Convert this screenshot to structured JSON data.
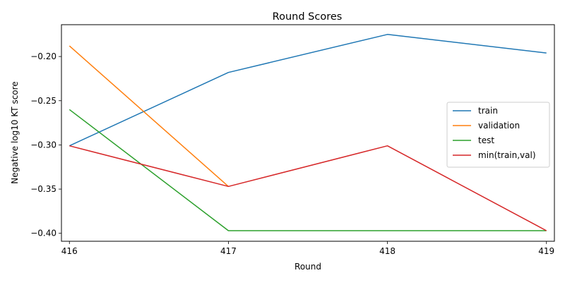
{
  "chart_data": {
    "type": "line",
    "title": "Round Scores",
    "xlabel": "Round",
    "ylabel": "Negative log10 KT score",
    "x": [
      416,
      417,
      418,
      419
    ],
    "xticks": [
      "416",
      "417",
      "418",
      "419"
    ],
    "yticks": [
      -0.2,
      -0.25,
      -0.3,
      -0.35,
      -0.4
    ],
    "ytick_labels": [
      "−0.20",
      "−0.25",
      "−0.30",
      "−0.35",
      "−0.40"
    ],
    "xlim": [
      415.95,
      419.05
    ],
    "ylim": [
      -0.409,
      -0.164
    ],
    "grid": false,
    "legend_position": "center-right",
    "series": [
      {
        "name": "train",
        "color": "#1f77b4",
        "values": [
          -0.301,
          -0.218,
          -0.175,
          -0.196
        ]
      },
      {
        "name": "validation",
        "color": "#ff7f0e",
        "values": [
          -0.188,
          -0.347,
          null,
          null
        ]
      },
      {
        "name": "test",
        "color": "#2ca02c",
        "values": [
          -0.26,
          -0.397,
          -0.397,
          -0.397
        ]
      },
      {
        "name": "min(train,val)",
        "color": "#d62728",
        "values": [
          -0.301,
          -0.347,
          -0.301,
          -0.397
        ]
      }
    ]
  }
}
